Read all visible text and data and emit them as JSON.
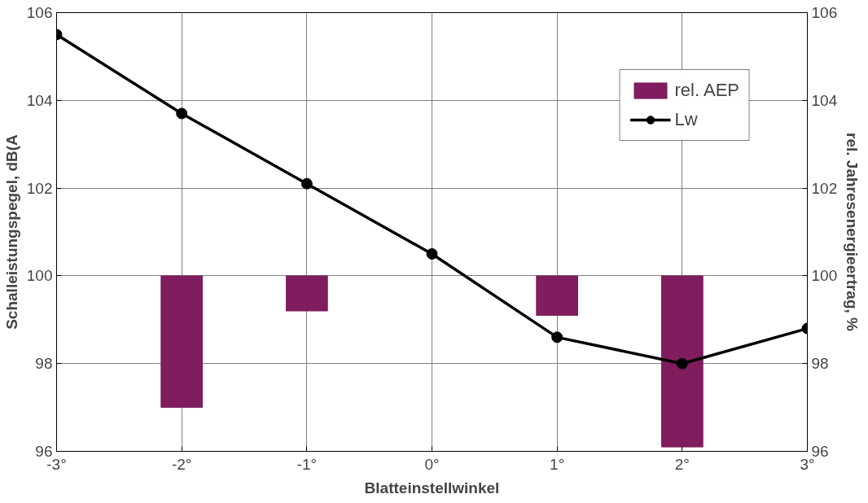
{
  "chart_data": {
    "type": "line",
    "xlabel": "Blatteinstellwinkel",
    "ylabel": "Schalleistungspegel, dB(A",
    "y2label": "rel. Jahresenergieertrag, %",
    "xlim": [
      -3,
      3
    ],
    "xticks": [
      {
        "value": -3,
        "label": "-3°"
      },
      {
        "value": -2,
        "label": "-2°"
      },
      {
        "value": -1,
        "label": "-1°"
      },
      {
        "value": 0,
        "label": "0°"
      },
      {
        "value": 1,
        "label": "1°"
      },
      {
        "value": 2,
        "label": "2°"
      },
      {
        "value": 3,
        "label": "3°"
      }
    ],
    "ylim": [
      96,
      106
    ],
    "yticks": [
      96,
      98,
      100,
      102,
      104,
      106
    ],
    "y2lim": [
      96,
      106
    ],
    "y2ticks": [
      96,
      98,
      100,
      102,
      104,
      106
    ],
    "grid": true,
    "legend": "top right",
    "series": [
      {
        "name": "rel. AEP",
        "type": "bar",
        "color": "#7f1d5e",
        "x": [
          -2,
          -1,
          1,
          2
        ],
        "base": [
          100,
          100,
          100,
          100
        ],
        "values": [
          -3.0,
          -0.8,
          -0.9,
          -3.9
        ]
      },
      {
        "name": "Lw",
        "color": "#000000",
        "marker": "circle",
        "line_style": "solid",
        "x": [
          -3,
          -2,
          -1,
          0,
          1,
          2,
          3
        ],
        "values": [
          105.5,
          103.7,
          102.1,
          100.5,
          98.6,
          98.0,
          98.8
        ]
      }
    ]
  }
}
